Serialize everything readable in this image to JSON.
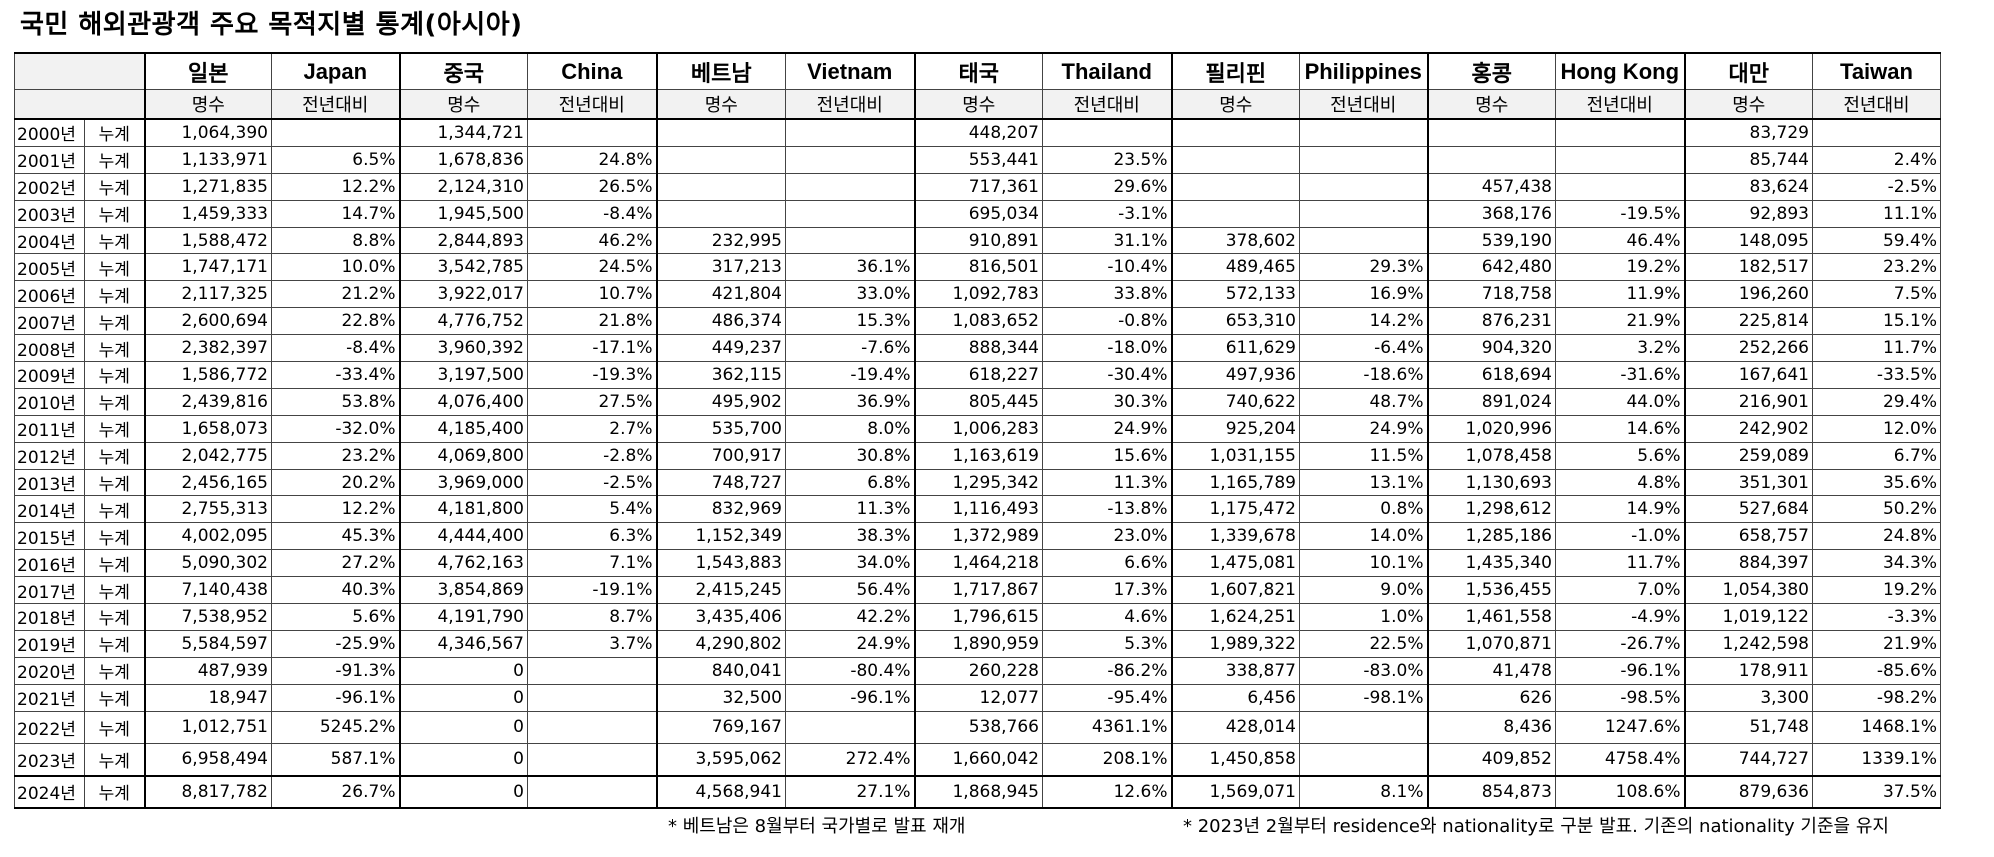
{
  "title": "국민 해외관광객 주요 목적지별 통계(아시아)",
  "countries": [
    {
      "ko": "일본",
      "en": "Japan"
    },
    {
      "ko": "중국",
      "en": "China"
    },
    {
      "ko": "베트남",
      "en": "Vietnam"
    },
    {
      "ko": "태국",
      "en": "Thailand"
    },
    {
      "ko": "필리핀",
      "en": "Philippines"
    },
    {
      "ko": "홍콩",
      "en": "Hong Kong"
    },
    {
      "ko": "대만",
      "en": "Taiwan"
    }
  ],
  "subheaders": {
    "count": "명수",
    "yoy": "전년대비"
  },
  "rows": [
    {
      "year": "2000년",
      "kind": "누계",
      "cells": [
        "1,064,390",
        "",
        "1,344,721",
        "",
        "",
        "",
        "448,207",
        "",
        "",
        "",
        "",
        "",
        "83,729",
        ""
      ]
    },
    {
      "year": "2001년",
      "kind": "누계",
      "cells": [
        "1,133,971",
        "6.5%",
        "1,678,836",
        "24.8%",
        "",
        "",
        "553,441",
        "23.5%",
        "",
        "",
        "",
        "",
        "85,744",
        "2.4%"
      ]
    },
    {
      "year": "2002년",
      "kind": "누계",
      "cells": [
        "1,271,835",
        "12.2%",
        "2,124,310",
        "26.5%",
        "",
        "",
        "717,361",
        "29.6%",
        "",
        "",
        "457,438",
        "",
        "83,624",
        "-2.5%"
      ]
    },
    {
      "year": "2003년",
      "kind": "누계",
      "cells": [
        "1,459,333",
        "14.7%",
        "1,945,500",
        "-8.4%",
        "",
        "",
        "695,034",
        "-3.1%",
        "",
        "",
        "368,176",
        "-19.5%",
        "92,893",
        "11.1%"
      ]
    },
    {
      "year": "2004년",
      "kind": "누계",
      "cells": [
        "1,588,472",
        "8.8%",
        "2,844,893",
        "46.2%",
        "232,995",
        "",
        "910,891",
        "31.1%",
        "378,602",
        "",
        "539,190",
        "46.4%",
        "148,095",
        "59.4%"
      ]
    },
    {
      "year": "2005년",
      "kind": "누계",
      "cells": [
        "1,747,171",
        "10.0%",
        "3,542,785",
        "24.5%",
        "317,213",
        "36.1%",
        "816,501",
        "-10.4%",
        "489,465",
        "29.3%",
        "642,480",
        "19.2%",
        "182,517",
        "23.2%"
      ]
    },
    {
      "year": "2006년",
      "kind": "누계",
      "cells": [
        "2,117,325",
        "21.2%",
        "3,922,017",
        "10.7%",
        "421,804",
        "33.0%",
        "1,092,783",
        "33.8%",
        "572,133",
        "16.9%",
        "718,758",
        "11.9%",
        "196,260",
        "7.5%"
      ]
    },
    {
      "year": "2007년",
      "kind": "누계",
      "cells": [
        "2,600,694",
        "22.8%",
        "4,776,752",
        "21.8%",
        "486,374",
        "15.3%",
        "1,083,652",
        "-0.8%",
        "653,310",
        "14.2%",
        "876,231",
        "21.9%",
        "225,814",
        "15.1%"
      ]
    },
    {
      "year": "2008년",
      "kind": "누계",
      "cells": [
        "2,382,397",
        "-8.4%",
        "3,960,392",
        "-17.1%",
        "449,237",
        "-7.6%",
        "888,344",
        "-18.0%",
        "611,629",
        "-6.4%",
        "904,320",
        "3.2%",
        "252,266",
        "11.7%"
      ]
    },
    {
      "year": "2009년",
      "kind": "누계",
      "cells": [
        "1,586,772",
        "-33.4%",
        "3,197,500",
        "-19.3%",
        "362,115",
        "-19.4%",
        "618,227",
        "-30.4%",
        "497,936",
        "-18.6%",
        "618,694",
        "-31.6%",
        "167,641",
        "-33.5%"
      ]
    },
    {
      "year": "2010년",
      "kind": "누계",
      "cells": [
        "2,439,816",
        "53.8%",
        "4,076,400",
        "27.5%",
        "495,902",
        "36.9%",
        "805,445",
        "30.3%",
        "740,622",
        "48.7%",
        "891,024",
        "44.0%",
        "216,901",
        "29.4%"
      ]
    },
    {
      "year": "2011년",
      "kind": "누계",
      "cells": [
        "1,658,073",
        "-32.0%",
        "4,185,400",
        "2.7%",
        "535,700",
        "8.0%",
        "1,006,283",
        "24.9%",
        "925,204",
        "24.9%",
        "1,020,996",
        "14.6%",
        "242,902",
        "12.0%"
      ]
    },
    {
      "year": "2012년",
      "kind": "누계",
      "cells": [
        "2,042,775",
        "23.2%",
        "4,069,800",
        "-2.8%",
        "700,917",
        "30.8%",
        "1,163,619",
        "15.6%",
        "1,031,155",
        "11.5%",
        "1,078,458",
        "5.6%",
        "259,089",
        "6.7%"
      ]
    },
    {
      "year": "2013년",
      "kind": "누계",
      "cells": [
        "2,456,165",
        "20.2%",
        "3,969,000",
        "-2.5%",
        "748,727",
        "6.8%",
        "1,295,342",
        "11.3%",
        "1,165,789",
        "13.1%",
        "1,130,693",
        "4.8%",
        "351,301",
        "35.6%"
      ]
    },
    {
      "year": "2014년",
      "kind": "누계",
      "cells": [
        "2,755,313",
        "12.2%",
        "4,181,800",
        "5.4%",
        "832,969",
        "11.3%",
        "1,116,493",
        "-13.8%",
        "1,175,472",
        "0.8%",
        "1,298,612",
        "14.9%",
        "527,684",
        "50.2%"
      ]
    },
    {
      "year": "2015년",
      "kind": "누계",
      "cells": [
        "4,002,095",
        "45.3%",
        "4,444,400",
        "6.3%",
        "1,152,349",
        "38.3%",
        "1,372,989",
        "23.0%",
        "1,339,678",
        "14.0%",
        "1,285,186",
        "-1.0%",
        "658,757",
        "24.8%"
      ]
    },
    {
      "year": "2016년",
      "kind": "누계",
      "cells": [
        "5,090,302",
        "27.2%",
        "4,762,163",
        "7.1%",
        "1,543,883",
        "34.0%",
        "1,464,218",
        "6.6%",
        "1,475,081",
        "10.1%",
        "1,435,340",
        "11.7%",
        "884,397",
        "34.3%"
      ]
    },
    {
      "year": "2017년",
      "kind": "누계",
      "cells": [
        "7,140,438",
        "40.3%",
        "3,854,869",
        "-19.1%",
        "2,415,245",
        "56.4%",
        "1,717,867",
        "17.3%",
        "1,607,821",
        "9.0%",
        "1,536,455",
        "7.0%",
        "1,054,380",
        "19.2%"
      ]
    },
    {
      "year": "2018년",
      "kind": "누계",
      "cells": [
        "7,538,952",
        "5.6%",
        "4,191,790",
        "8.7%",
        "3,435,406",
        "42.2%",
        "1,796,615",
        "4.6%",
        "1,624,251",
        "1.0%",
        "1,461,558",
        "-4.9%",
        "1,019,122",
        "-3.3%"
      ]
    },
    {
      "year": "2019년",
      "kind": "누계",
      "cells": [
        "5,584,597",
        "-25.9%",
        "4,346,567",
        "3.7%",
        "4,290,802",
        "24.9%",
        "1,890,959",
        "5.3%",
        "1,989,322",
        "22.5%",
        "1,070,871",
        "-26.7%",
        "1,242,598",
        "21.9%"
      ]
    },
    {
      "year": "2020년",
      "kind": "누계",
      "cells": [
        "487,939",
        "-91.3%",
        "0",
        "",
        "840,041",
        "-80.4%",
        "260,228",
        "-86.2%",
        "338,877",
        "-83.0%",
        "41,478",
        "-96.1%",
        "178,911",
        "-85.6%"
      ]
    },
    {
      "year": "2021년",
      "kind": "누계",
      "cells": [
        "18,947",
        "-96.1%",
        "0",
        "",
        "32,500",
        "-96.1%",
        "12,077",
        "-95.4%",
        "6,456",
        "-98.1%",
        "626",
        "-98.5%",
        "3,300",
        "-98.2%"
      ]
    },
    {
      "year": "2022년",
      "kind": "누계",
      "cells": [
        "1,012,751",
        "5245.2%",
        "0",
        "",
        "769,167",
        "",
        "538,766",
        "4361.1%",
        "428,014",
        "",
        "8,436",
        "1247.6%",
        "51,748",
        "1468.1%"
      ]
    },
    {
      "year": "2023년",
      "kind": "누계",
      "cells": [
        "6,958,494",
        "587.1%",
        "0",
        "",
        "3,595,062",
        "272.4%",
        "1,660,042",
        "208.1%",
        "1,450,858",
        "",
        "409,852",
        "4758.4%",
        "744,727",
        "1339.1%"
      ]
    },
    {
      "year": "2024년",
      "kind": "누계",
      "cells": [
        "8,817,782",
        "26.7%",
        "0",
        "",
        "4,568,941",
        "27.1%",
        "1,868,945",
        "12.6%",
        "1,569,071",
        "8.1%",
        "854,873",
        "108.6%",
        "879,636",
        "37.5%"
      ]
    }
  ],
  "notes": {
    "vietnam": "* 베트남은 8월부터 국가별로 발표 재개",
    "residence": "* 2023년 2월부터 residence와 nationality로 구분 발표. 기존의 nationality 기준을 유지"
  }
}
